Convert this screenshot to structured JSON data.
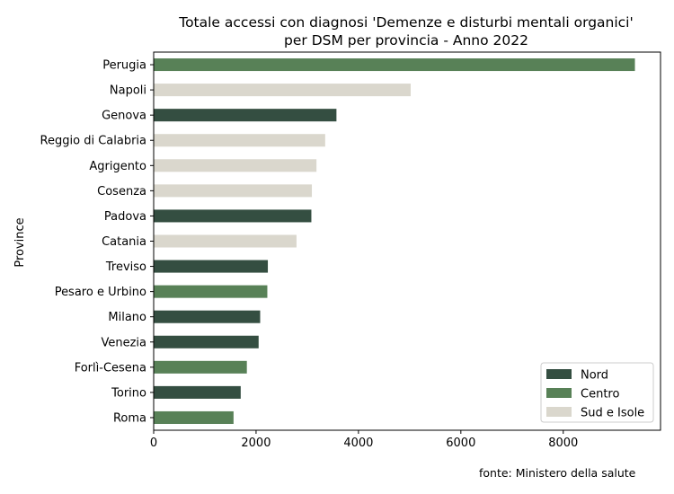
{
  "chart_data": {
    "type": "bar",
    "orientation": "horizontal",
    "title_lines": [
      "Totale accessi con diagnosi 'Demenze e disturbi mentali organici'",
      "per DSM per provincia - Anno 2022"
    ],
    "ylabel": "Province",
    "xlabel": "",
    "xlim": [
      0,
      9900
    ],
    "xticks": [
      "0",
      "2000",
      "4000",
      "6000",
      "8000"
    ],
    "xtick_values": [
      0,
      2000,
      4000,
      6000,
      8000
    ],
    "grid": false,
    "legend_position": "lower-right",
    "categories": [
      "Perugia",
      "Napoli",
      "Genova",
      "Reggio di Calabria",
      "Agrigento",
      "Cosenza",
      "Padova",
      "Catania",
      "Treviso",
      "Pesaro e Urbino",
      "Milano",
      "Venezia",
      "Forlì-Cesena",
      "Torino",
      "Roma"
    ],
    "values": [
      9400,
      5020,
      3570,
      3350,
      3180,
      3090,
      3080,
      2790,
      2230,
      2220,
      2080,
      2050,
      1820,
      1700,
      1560
    ],
    "groups": [
      "Centro",
      "Sud e Isole",
      "Nord",
      "Sud e Isole",
      "Sud e Isole",
      "Sud e Isole",
      "Nord",
      "Sud e Isole",
      "Nord",
      "Centro",
      "Nord",
      "Nord",
      "Centro",
      "Nord",
      "Centro"
    ],
    "legend": [
      {
        "name": "Nord",
        "color": "#344e41"
      },
      {
        "name": "Centro",
        "color": "#588157"
      },
      {
        "name": "Sud e Isole",
        "color": "#dad7cd"
      }
    ]
  },
  "source_note": "fonte: Ministero della salute"
}
